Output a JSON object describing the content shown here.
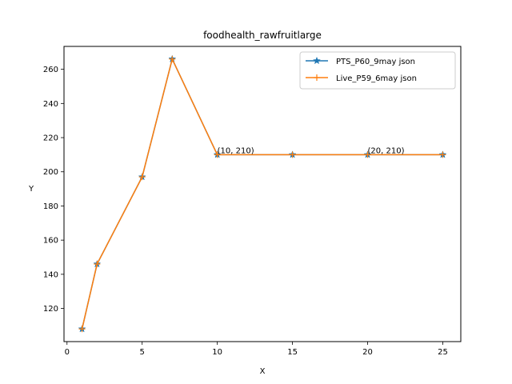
{
  "chart_data": {
    "type": "line",
    "title": "foodhealth_rawfruitlarge",
    "xlabel": "X",
    "ylabel": "Y",
    "xlim": [
      -0.2,
      26.2
    ],
    "ylim": [
      100.6,
      273.4
    ],
    "xticks": [
      0,
      5,
      10,
      15,
      20,
      25
    ],
    "yticks": [
      120,
      140,
      160,
      180,
      200,
      220,
      240,
      260
    ],
    "grid": false,
    "legend_position": "top-right",
    "series": [
      {
        "name": "PTS_P60_9may json",
        "color": "#1f77b4",
        "marker": "star",
        "x": [
          1,
          2,
          5,
          7,
          10,
          15,
          20,
          25
        ],
        "y": [
          108,
          146,
          197,
          266,
          210,
          210,
          210,
          210
        ]
      },
      {
        "name": "Live_P59_6may json",
        "color": "#ff7f0e",
        "marker": "plus",
        "x": [
          1,
          2,
          5,
          7,
          10,
          15,
          20,
          25
        ],
        "y": [
          108,
          146,
          197,
          266,
          210,
          210,
          210,
          210
        ]
      }
    ],
    "annotations": [
      {
        "text": "(10, 210)",
        "x": 10,
        "y": 210
      },
      {
        "text": "(20, 210)",
        "x": 20,
        "y": 210
      }
    ]
  }
}
